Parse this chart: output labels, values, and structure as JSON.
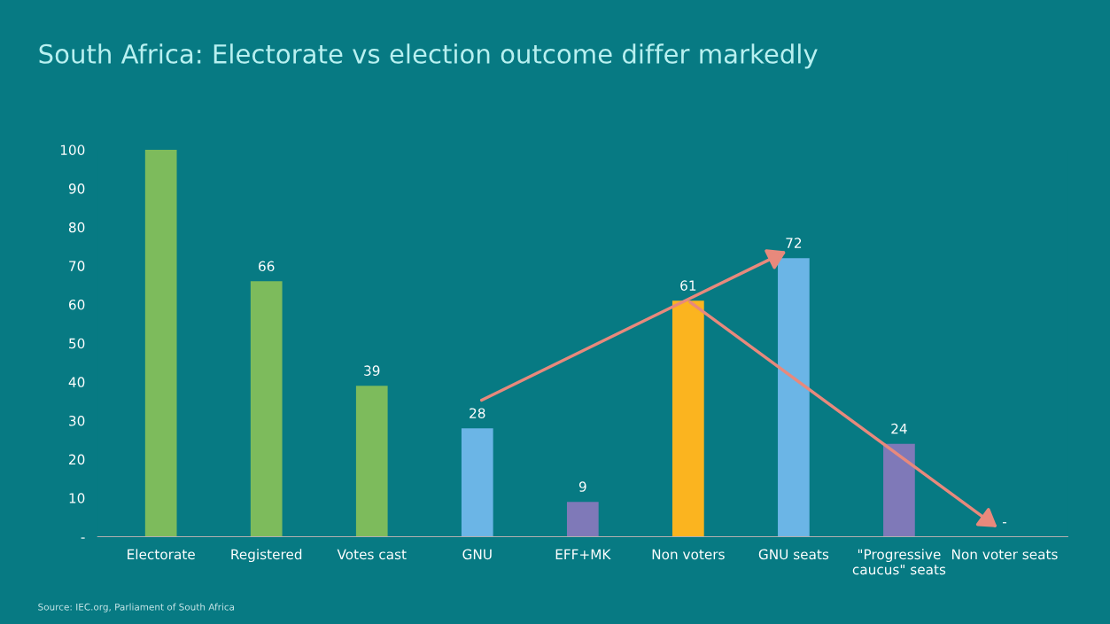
{
  "chart_data": {
    "type": "bar",
    "title": "South Africa: Electorate vs election outcome differ markedly",
    "categories": [
      "Electorate",
      "Registered",
      "Votes cast",
      "GNU",
      "EFF+MK",
      "Non voters",
      "GNU seats",
      "\"Progressive\ncaucus\" seats",
      "Non voter seats"
    ],
    "values": [
      100,
      66,
      39,
      28,
      9,
      61,
      72,
      24,
      0
    ],
    "colors": [
      "#7dbb5c",
      "#7dbb5c",
      "#7dbb5c",
      "#6bb5e6",
      "#7f79b8",
      "#fbb41f",
      "#6bb5e6",
      "#7f79b8",
      "#7f79b8"
    ],
    "value_labels": [
      null,
      "66",
      "39",
      "28",
      "9",
      "61",
      "72",
      "24",
      "-"
    ],
    "ylim": [
      0,
      100
    ],
    "yticks": [
      {
        "value": 0,
        "label": "-"
      },
      10,
      20,
      30,
      40,
      50,
      60,
      70,
      80,
      90,
      100
    ],
    "grid": false,
    "annotations": [
      "Source: IEC.org, Parliament of South Africa"
    ]
  }
}
